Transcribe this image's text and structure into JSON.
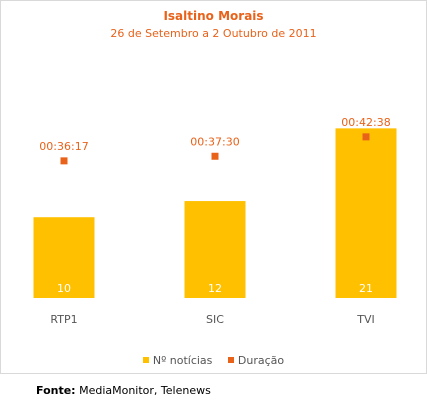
{
  "chart_data": {
    "type": "bar",
    "title": "Isaltino Morais",
    "subtitle": "26 de Setembro a 2 Outubro de 2011",
    "categories": [
      "RTP1",
      "SIC",
      "TVI"
    ],
    "series": [
      {
        "name": "Nº notícias",
        "kind": "bar",
        "color": "#ffc000",
        "values": [
          10,
          12,
          21
        ]
      },
      {
        "name": "Duração",
        "kind": "marker",
        "color": "#e8621a",
        "values_seconds": [
          2177,
          2250,
          2558
        ],
        "labels": [
          "00:36:17",
          "00:37:30",
          "00:42:38"
        ]
      }
    ],
    "ylim_bars": [
      0,
      25.5
    ],
    "ylim_duration_seconds": [
      0,
      3270
    ],
    "grid": false,
    "legend_position": "bottom"
  },
  "legend": {
    "items": [
      {
        "label": "Nº notícias",
        "color": "#ffc000"
      },
      {
        "label": "Duração",
        "color": "#e8621a"
      }
    ]
  },
  "source": {
    "prefix": "Fonte:",
    "text": " MediaMonitor, Telenews"
  }
}
